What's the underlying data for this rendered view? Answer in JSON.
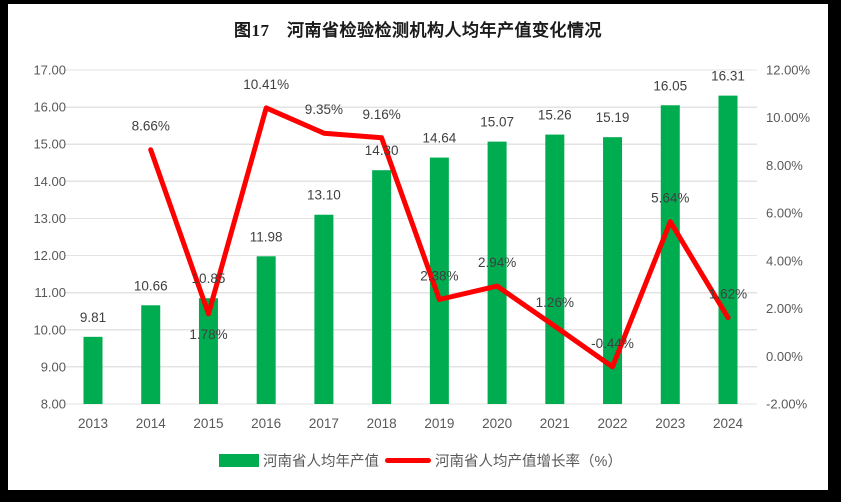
{
  "title": "图17　河南省检验检测机构人均年产值变化情况",
  "colors": {
    "bar": "#00AC50",
    "line": "#FF0000",
    "grid": "#E3E3E3",
    "axis_text": "#595959",
    "label_text": "#404040",
    "frame": "#000000",
    "background": "#FFFFFF"
  },
  "chart_data": {
    "type": "bar+line combo",
    "title": "图17　河南省检验检测机构人均年产值变化情况",
    "categories": [
      "2013",
      "2014",
      "2015",
      "2016",
      "2017",
      "2018",
      "2019",
      "2020",
      "2021",
      "2022",
      "2023",
      "2024"
    ],
    "series": [
      {
        "name": "河南省人均年产值",
        "type": "bar",
        "axis": "left",
        "values": [
          9.81,
          10.66,
          10.85,
          11.98,
          13.1,
          14.3,
          14.64,
          15.07,
          15.26,
          15.19,
          16.05,
          16.31
        ],
        "labels": [
          "9.81",
          "10.66",
          "10.85",
          "11.98",
          "13.10",
          "14.30",
          "14.64",
          "15.07",
          "15.26",
          "15.19",
          "16.05",
          "16.31"
        ]
      },
      {
        "name": "河南省人均产值增长率（%）",
        "type": "line",
        "axis": "right",
        "values": [
          null,
          8.66,
          1.78,
          10.41,
          9.35,
          9.16,
          2.38,
          2.94,
          1.26,
          -0.44,
          5.64,
          1.62
        ],
        "labels": [
          null,
          "8.66%",
          "1.78%",
          "10.41%",
          "9.35%",
          "9.16%",
          "2.38%",
          "2.94%",
          "1.26%",
          "-0.44%",
          "5.64%",
          "1.62%"
        ],
        "label_below_indices": [
          2
        ]
      }
    ],
    "left_axis": {
      "min": 8,
      "max": 17,
      "step": 1,
      "ticks": [
        "17.00",
        "16.00",
        "15.00",
        "14.00",
        "13.00",
        "12.00",
        "11.00",
        "10.00",
        "9.00",
        "8.00"
      ]
    },
    "right_axis": {
      "min": -2,
      "max": 12,
      "step": 2,
      "ticks": [
        "12.00%",
        "10.00%",
        "8.00%",
        "6.00%",
        "4.00%",
        "2.00%",
        "0.00%",
        "-2.00%"
      ]
    },
    "grid": true,
    "legend_position": "bottom",
    "legend": [
      "河南省人均年产值",
      "河南省人均产值增长率（%）"
    ]
  }
}
